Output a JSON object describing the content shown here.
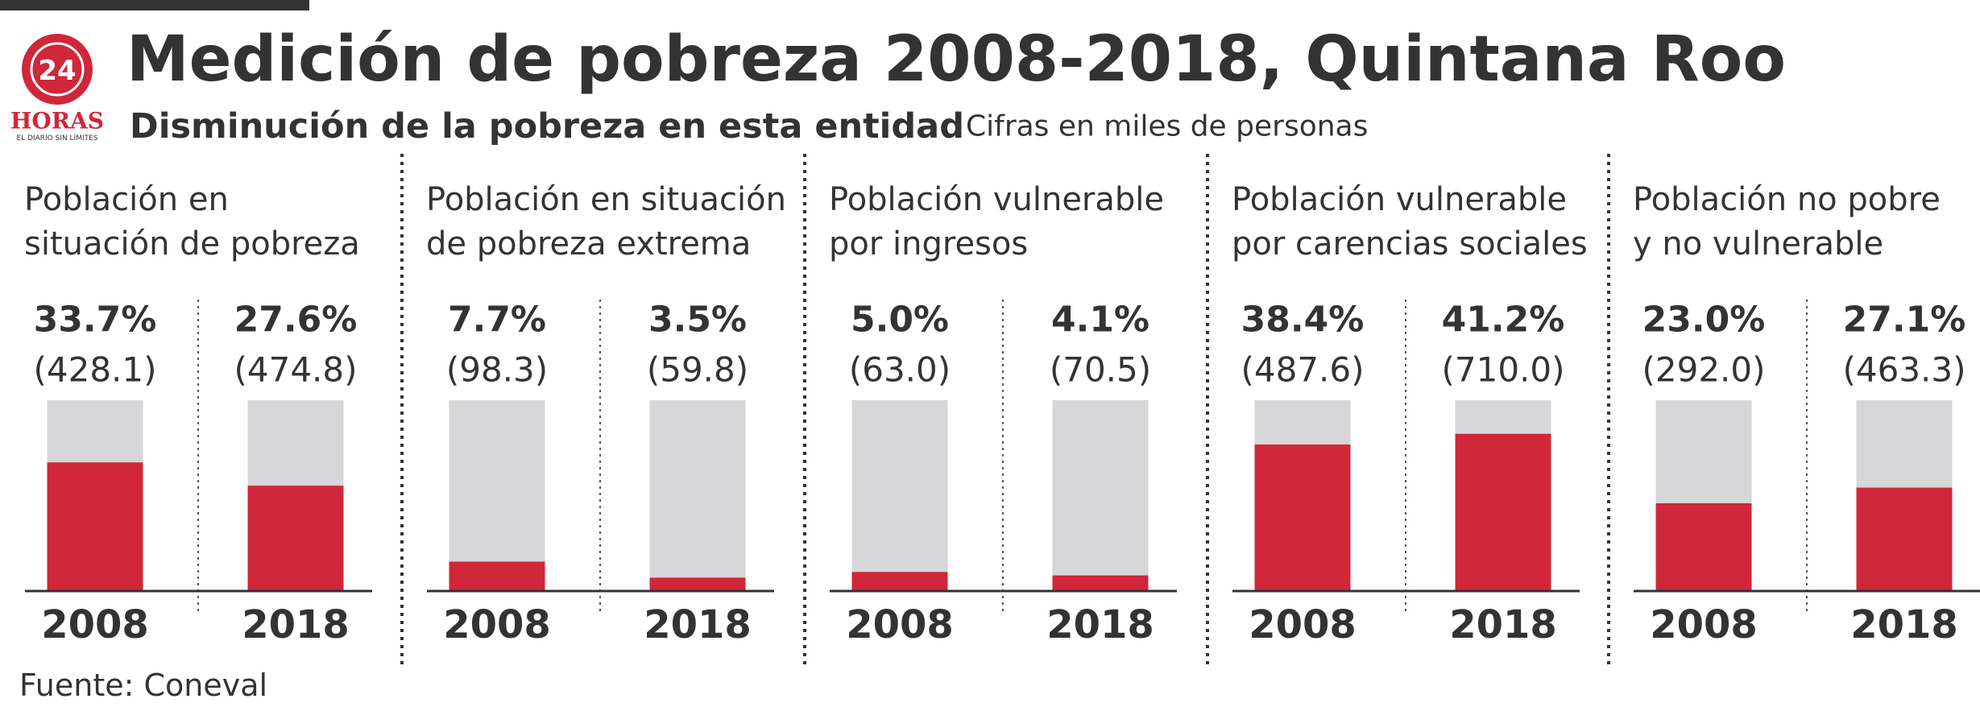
{
  "header": {
    "title": "Medición de pobreza 2008-2018, Quintana Roo",
    "subtitle": "Disminución de la pobreza en esta entidad",
    "note": "Cifras en miles de personas",
    "source": "Fuente: Coneval",
    "logo": {
      "number": "24",
      "name": "HORAS",
      "tagline": "EL DIARIO SIN LÍMITES"
    }
  },
  "chart_data": [
    {
      "type": "bar",
      "title": [
        "Población en",
        "situación de pobreza"
      ],
      "categories": [
        "2008",
        "2018"
      ],
      "values": [
        33.7,
        27.6
      ],
      "value_labels": [
        "33.7%",
        "27.6%"
      ],
      "count_labels": [
        "(428.1)",
        "(474.8)"
      ],
      "ylim": [
        0,
        50
      ],
      "color": "#d0273a",
      "track_color": "#d7d6d8"
    },
    {
      "type": "bar",
      "title": [
        "Población en situación",
        "de pobreza extrema"
      ],
      "categories": [
        "2008",
        "2018"
      ],
      "values": [
        7.7,
        3.5
      ],
      "value_labels": [
        "7.7%",
        "3.5%"
      ],
      "count_labels": [
        "(98.3)",
        "(59.8)"
      ],
      "ylim": [
        0,
        50
      ],
      "color": "#d0273a",
      "track_color": "#d7d6d8"
    },
    {
      "type": "bar",
      "title": [
        "Población vulnerable",
        "por ingresos"
      ],
      "categories": [
        "2008",
        "2018"
      ],
      "values": [
        5.0,
        4.1
      ],
      "value_labels": [
        "5.0%",
        "4.1%"
      ],
      "count_labels": [
        "(63.0)",
        "(70.5)"
      ],
      "ylim": [
        0,
        50
      ],
      "color": "#d0273a",
      "track_color": "#d7d6d8"
    },
    {
      "type": "bar",
      "title": [
        "Población vulnerable",
        "por carencias sociales"
      ],
      "categories": [
        "2008",
        "2018"
      ],
      "values": [
        38.4,
        41.2
      ],
      "value_labels": [
        "38.4%",
        "41.2%"
      ],
      "count_labels": [
        "(487.6)",
        "(710.0)"
      ],
      "ylim": [
        0,
        50
      ],
      "color": "#d0273a",
      "track_color": "#d7d6d8"
    },
    {
      "type": "bar",
      "title": [
        "Población no pobre",
        "y no vulnerable"
      ],
      "categories": [
        "2008",
        "2018"
      ],
      "values": [
        23.0,
        27.1
      ],
      "value_labels": [
        "23.0%",
        "27.1%"
      ],
      "count_labels": [
        "(292.0)",
        "(463.3)"
      ],
      "ylim": [
        0,
        50
      ],
      "color": "#d0273a",
      "track_color": "#d7d6d8"
    }
  ]
}
